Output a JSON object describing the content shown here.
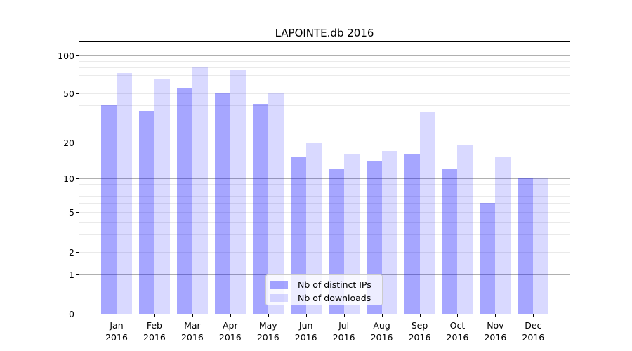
{
  "title": "LAPOINTE.db 2016",
  "y_axis": {
    "ticks": [
      {
        "label": "100",
        "value": 100
      },
      {
        "label": "50",
        "value": 50
      },
      {
        "label": "20",
        "value": 20
      },
      {
        "label": "10",
        "value": 10
      },
      {
        "label": "5",
        "value": 5
      },
      {
        "label": "2",
        "value": 2
      },
      {
        "label": "1",
        "value": 1
      },
      {
        "label": "0",
        "value": 0
      }
    ]
  },
  "x_axis": {
    "months": [
      "Jan",
      "Feb",
      "Mar",
      "Apr",
      "May",
      "Jun",
      "Jul",
      "Aug",
      "Sep",
      "Oct",
      "Nov",
      "Dec"
    ],
    "year_line": "2016"
  },
  "legend": {
    "items": [
      {
        "label": "Nb of distinct IPs",
        "color": "rgba(0,0,255,0.35)",
        "color_hex": "#a6a6ff"
      },
      {
        "label": "Nb of downloads",
        "color": "rgba(0,0,255,0.15)",
        "color_hex": "#d9d9ff"
      }
    ]
  },
  "colors": {
    "grid_major": "#b0b0b0",
    "grid_minor": "#eaeaea",
    "axis": "#000000"
  },
  "chart_data": {
    "type": "bar",
    "title": "LAPOINTE.db 2016",
    "categories": [
      "Jan 2016",
      "Feb 2016",
      "Mar 2016",
      "Apr 2016",
      "May 2016",
      "Jun 2016",
      "Jul 2016",
      "Aug 2016",
      "Sep 2016",
      "Oct 2016",
      "Nov 2016",
      "Dec 2016"
    ],
    "series": [
      {
        "name": "Nb of distinct IPs",
        "values": [
          40,
          36,
          55,
          50,
          41,
          15,
          12,
          14,
          16,
          12,
          6,
          10
        ]
      },
      {
        "name": "Nb of downloads",
        "values": [
          73,
          65,
          80,
          76,
          50,
          20,
          16,
          17,
          35,
          19,
          15,
          10
        ]
      }
    ],
    "yscale": "symlog",
    "yticks": [
      0,
      1,
      2,
      5,
      10,
      20,
      50,
      100
    ],
    "ylim": [
      0,
      130
    ],
    "grid": "on",
    "legend_position": "lower center"
  }
}
